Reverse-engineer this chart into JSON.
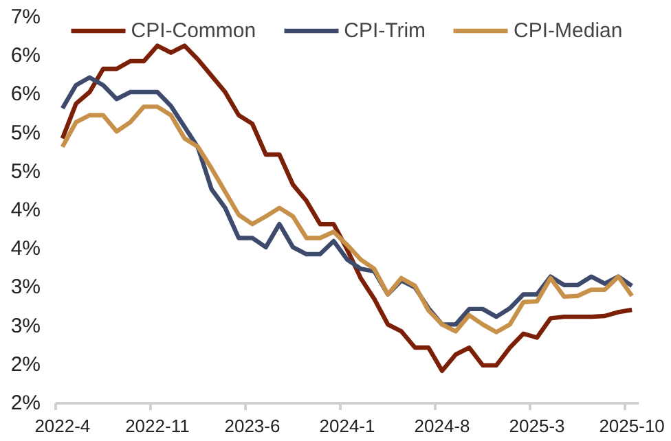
{
  "chart_data": {
    "type": "line",
    "categories": [
      "2022-4",
      null,
      null,
      null,
      null,
      null,
      null,
      "2022-11",
      null,
      null,
      null,
      null,
      null,
      null,
      "2023-6",
      null,
      null,
      null,
      null,
      null,
      null,
      "2024-1",
      null,
      null,
      null,
      null,
      null,
      null,
      "2024-8",
      null,
      null,
      null,
      null,
      null,
      null,
      "2025-3",
      null,
      null,
      null,
      null,
      null,
      null,
      "2025-10"
    ],
    "series": [
      {
        "name": "CPI-Common",
        "color": "#7b1f07",
        "values": [
          4.93,
          5.38,
          5.53,
          5.83,
          5.83,
          5.93,
          5.93,
          6.13,
          6.04,
          6.13,
          5.95,
          5.74,
          5.53,
          5.23,
          5.12,
          4.72,
          4.72,
          4.33,
          4.12,
          3.82,
          3.82,
          3.49,
          3.12,
          2.85,
          2.52,
          2.43,
          2.22,
          2.22,
          1.92,
          2.13,
          2.22,
          1.99,
          1.99,
          2.22,
          2.4,
          2.35,
          2.6,
          2.62,
          2.62,
          2.62,
          2.63,
          2.68,
          2.71
        ]
      },
      {
        "name": "CPI-Trim",
        "color": "#3d4a6b",
        "values": [
          5.32,
          5.62,
          5.72,
          5.62,
          5.44,
          5.53,
          5.53,
          5.53,
          5.35,
          5.08,
          4.81,
          4.27,
          4.03,
          3.64,
          3.64,
          3.52,
          3.82,
          3.52,
          3.43,
          3.43,
          3.6,
          3.36,
          3.24,
          3.21,
          2.91,
          3.09,
          3.0,
          2.73,
          2.52,
          2.52,
          2.72,
          2.72,
          2.62,
          2.73,
          2.91,
          2.91,
          3.14,
          3.03,
          3.03,
          3.14,
          3.05,
          3.14,
          3.02
        ]
      },
      {
        "name": "CPI-Median",
        "color": "#c8914a",
        "values": [
          4.82,
          5.14,
          5.23,
          5.23,
          5.02,
          5.14,
          5.34,
          5.34,
          5.23,
          4.93,
          4.82,
          4.54,
          4.24,
          3.94,
          3.82,
          3.92,
          4.03,
          3.92,
          3.64,
          3.64,
          3.72,
          3.55,
          3.36,
          3.24,
          2.91,
          3.12,
          3.02,
          2.7,
          2.52,
          2.43,
          2.64,
          2.52,
          2.42,
          2.52,
          2.81,
          2.82,
          3.12,
          2.88,
          2.89,
          2.97,
          2.97,
          3.14,
          2.89
        ]
      }
    ],
    "ylim": [
      1.5,
      6.5
    ],
    "yticks": [
      {
        "value": 1.5,
        "label": "2%"
      },
      {
        "value": 2.0,
        "label": "2%"
      },
      {
        "value": 2.5,
        "label": "3%"
      },
      {
        "value": 3.0,
        "label": "3%"
      },
      {
        "value": 3.5,
        "label": "4%"
      },
      {
        "value": 4.0,
        "label": "4%"
      },
      {
        "value": 4.5,
        "label": "5%"
      },
      {
        "value": 5.0,
        "label": "5%"
      },
      {
        "value": 5.5,
        "label": "6%"
      },
      {
        "value": 6.0,
        "label": "6%"
      },
      {
        "value": 6.5,
        "label": "7%"
      }
    ],
    "grid": false,
    "legend": "top",
    "line_style": "solid"
  }
}
